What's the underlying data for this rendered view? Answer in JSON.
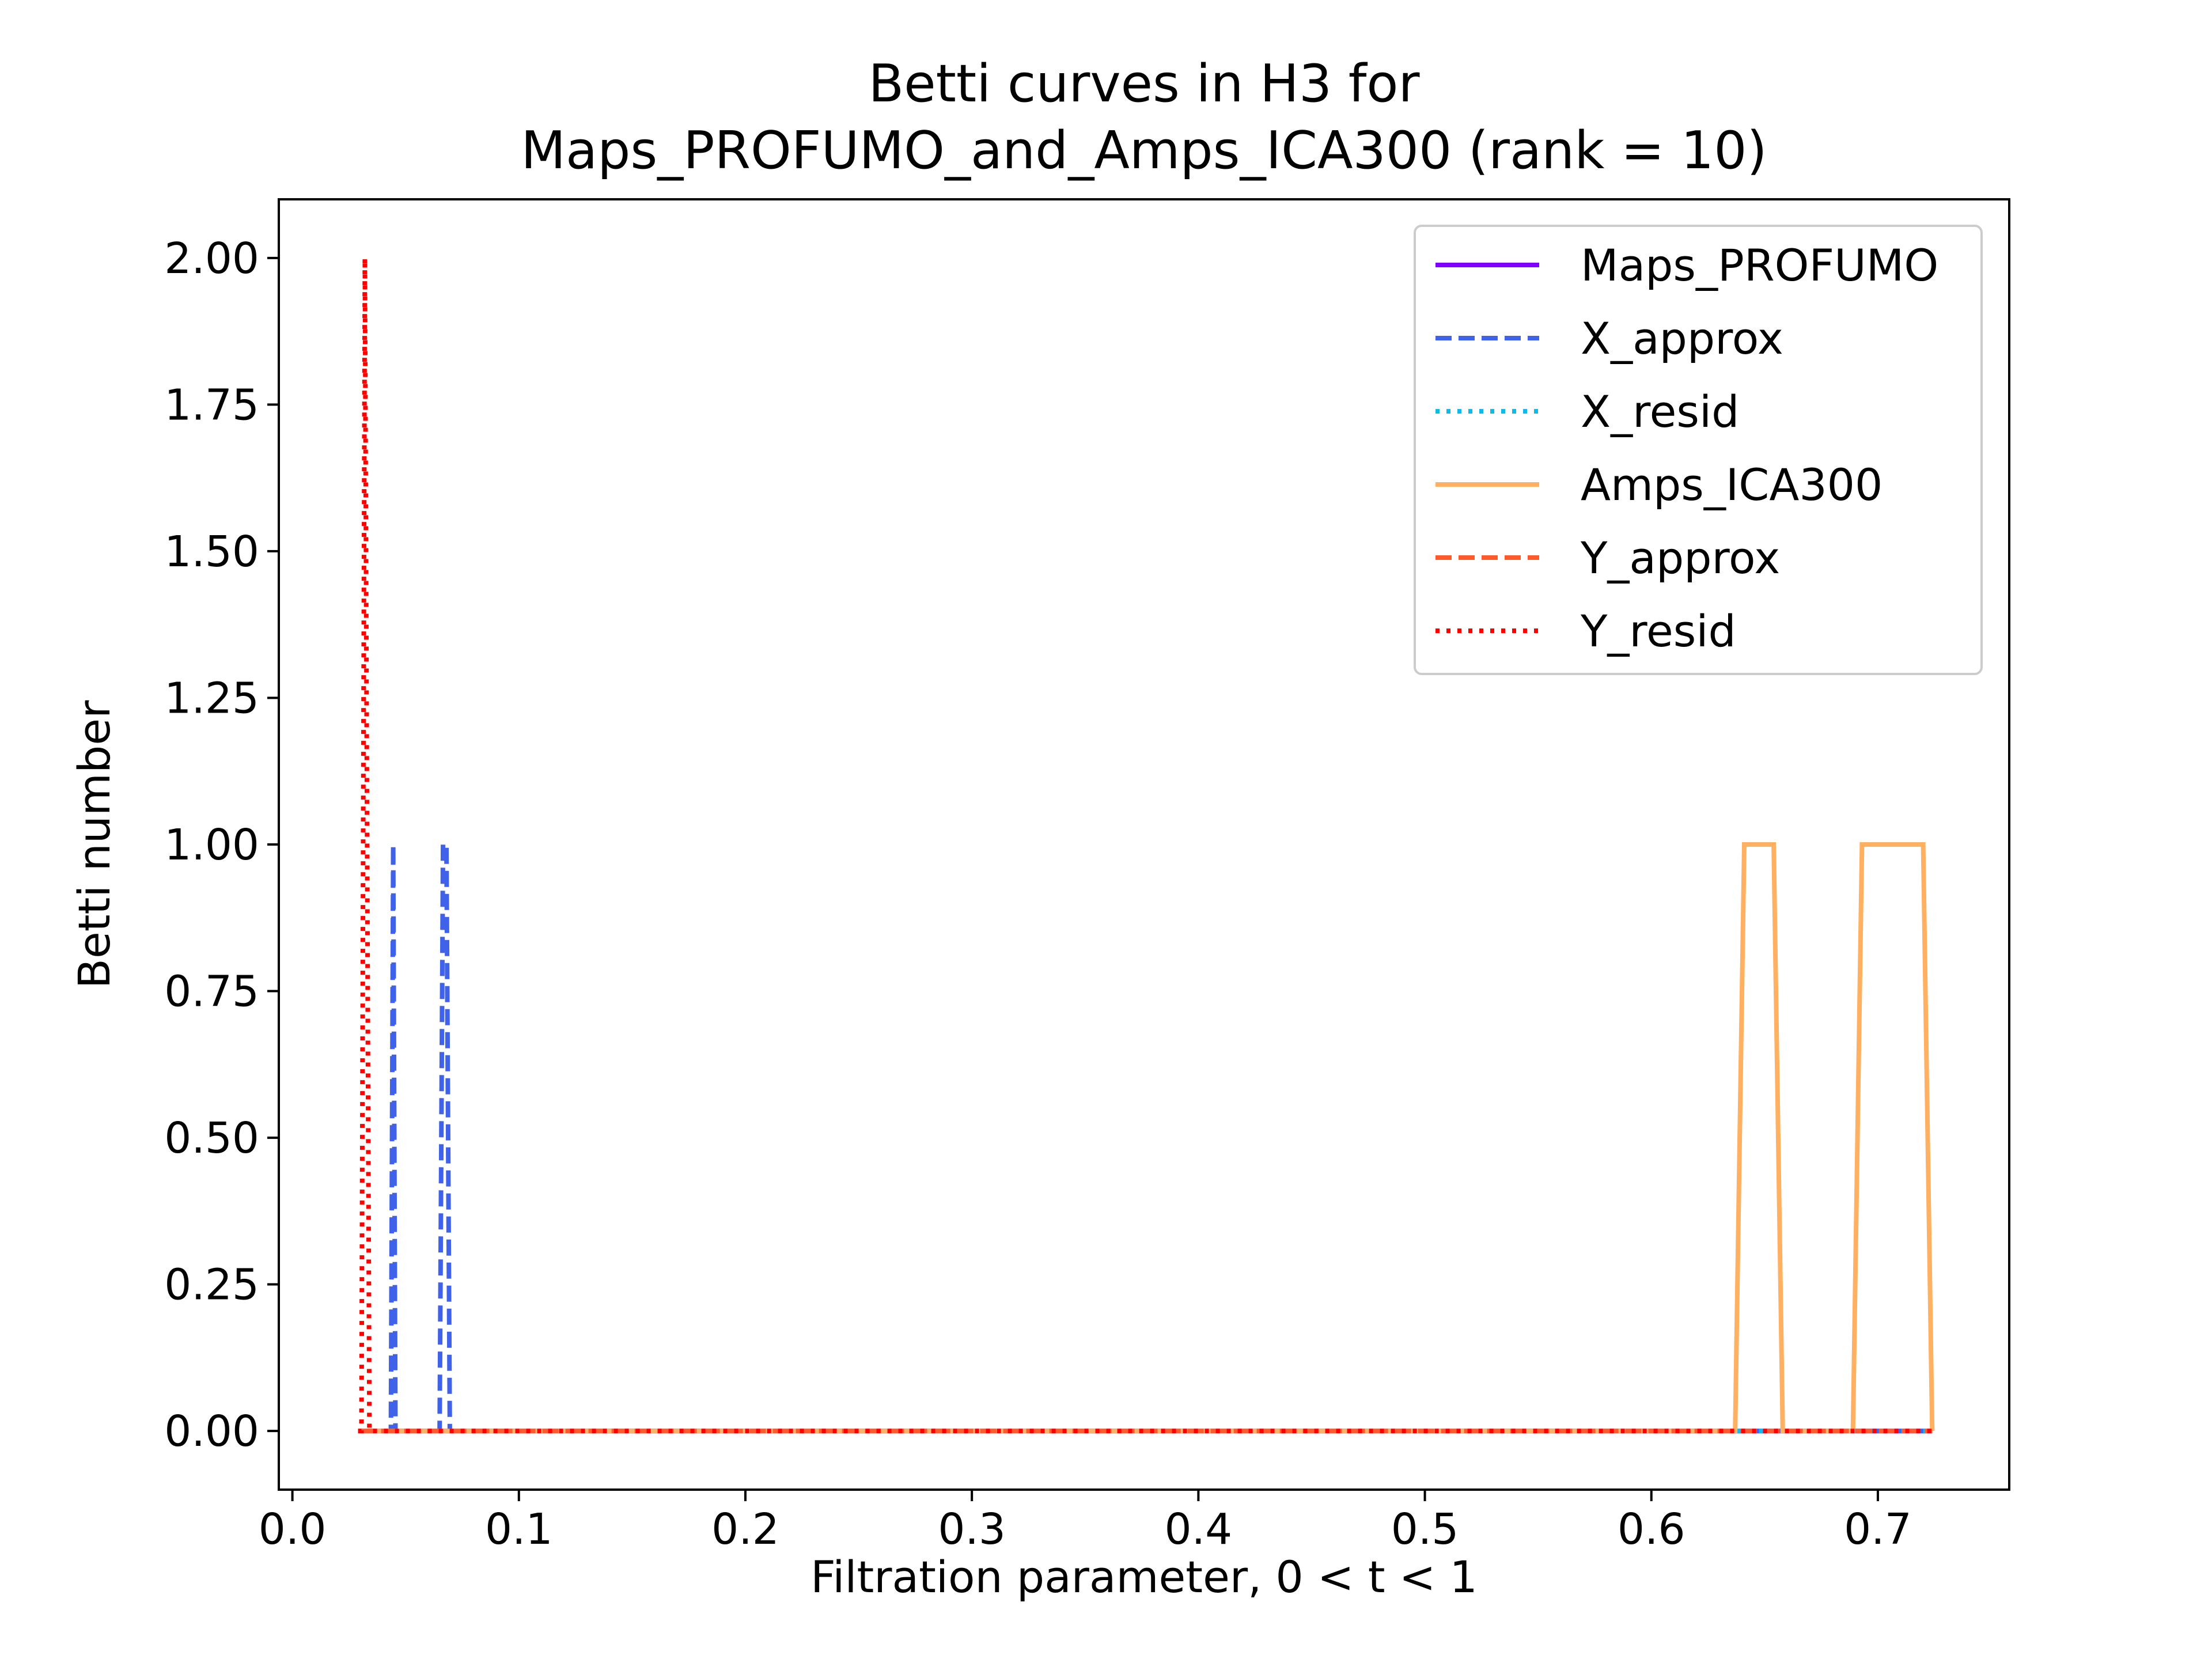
{
  "chart_data": {
    "type": "line",
    "title": [
      "Betti curves in H3 for",
      "Maps_PROFUMO_and_Amps_ICA300 (rank = 10)"
    ],
    "xlabel": "Filtration parameter, 0 < t < 1",
    "ylabel": "Betti number",
    "xlim": [
      -0.006,
      0.758
    ],
    "ylim": [
      -0.1,
      2.1
    ],
    "xticks": [
      0.0,
      0.1,
      0.2,
      0.3,
      0.4,
      0.5,
      0.6,
      0.7
    ],
    "xtick_labels": [
      "0.0",
      "0.1",
      "0.2",
      "0.3",
      "0.4",
      "0.5",
      "0.6",
      "0.7"
    ],
    "yticks": [
      0.0,
      0.25,
      0.5,
      0.75,
      1.0,
      1.25,
      1.5,
      1.75,
      2.0
    ],
    "ytick_labels": [
      "0.00",
      "0.25",
      "0.50",
      "0.75",
      "1.00",
      "1.25",
      "1.50",
      "1.75",
      "2.00"
    ],
    "grid": false,
    "legend_position": "top-right",
    "series": [
      {
        "name": "Maps_PROFUMO",
        "color": "#7f00ff",
        "dash": "solid",
        "x": [
          0.029,
          0.724
        ],
        "y": [
          0,
          0
        ]
      },
      {
        "name": "X_approx",
        "color": "#4062e8",
        "dash": "dashed",
        "x": [
          0.029,
          0.0435,
          0.0445,
          0.0455,
          0.065,
          0.0665,
          0.068,
          0.0695,
          0.724
        ],
        "y": [
          0,
          0,
          1,
          0,
          0,
          1,
          1,
          0,
          0
        ]
      },
      {
        "name": "X_resid",
        "color": "#12b8e6",
        "dash": "dotted",
        "x": [
          0.029,
          0.724
        ],
        "y": [
          0,
          0
        ]
      },
      {
        "name": "Amps_ICA300",
        "color": "#ffb060",
        "dash": "solid",
        "x": [
          0.029,
          0.637,
          0.641,
          0.654,
          0.658,
          0.689,
          0.693,
          0.72,
          0.724
        ],
        "y": [
          0,
          0,
          1,
          1,
          0,
          0,
          1,
          1,
          0
        ]
      },
      {
        "name": "Y_approx",
        "color": "#ff5a2c",
        "dash": "dashed",
        "x": [
          0.029,
          0.724
        ],
        "y": [
          0,
          0
        ]
      },
      {
        "name": "Y_resid",
        "color": "#ff0000",
        "dash": "dotted",
        "x": [
          0.029,
          0.0305,
          0.032,
          0.034,
          0.035,
          0.724
        ],
        "y": [
          0,
          0,
          2,
          0,
          0,
          0
        ]
      }
    ]
  }
}
